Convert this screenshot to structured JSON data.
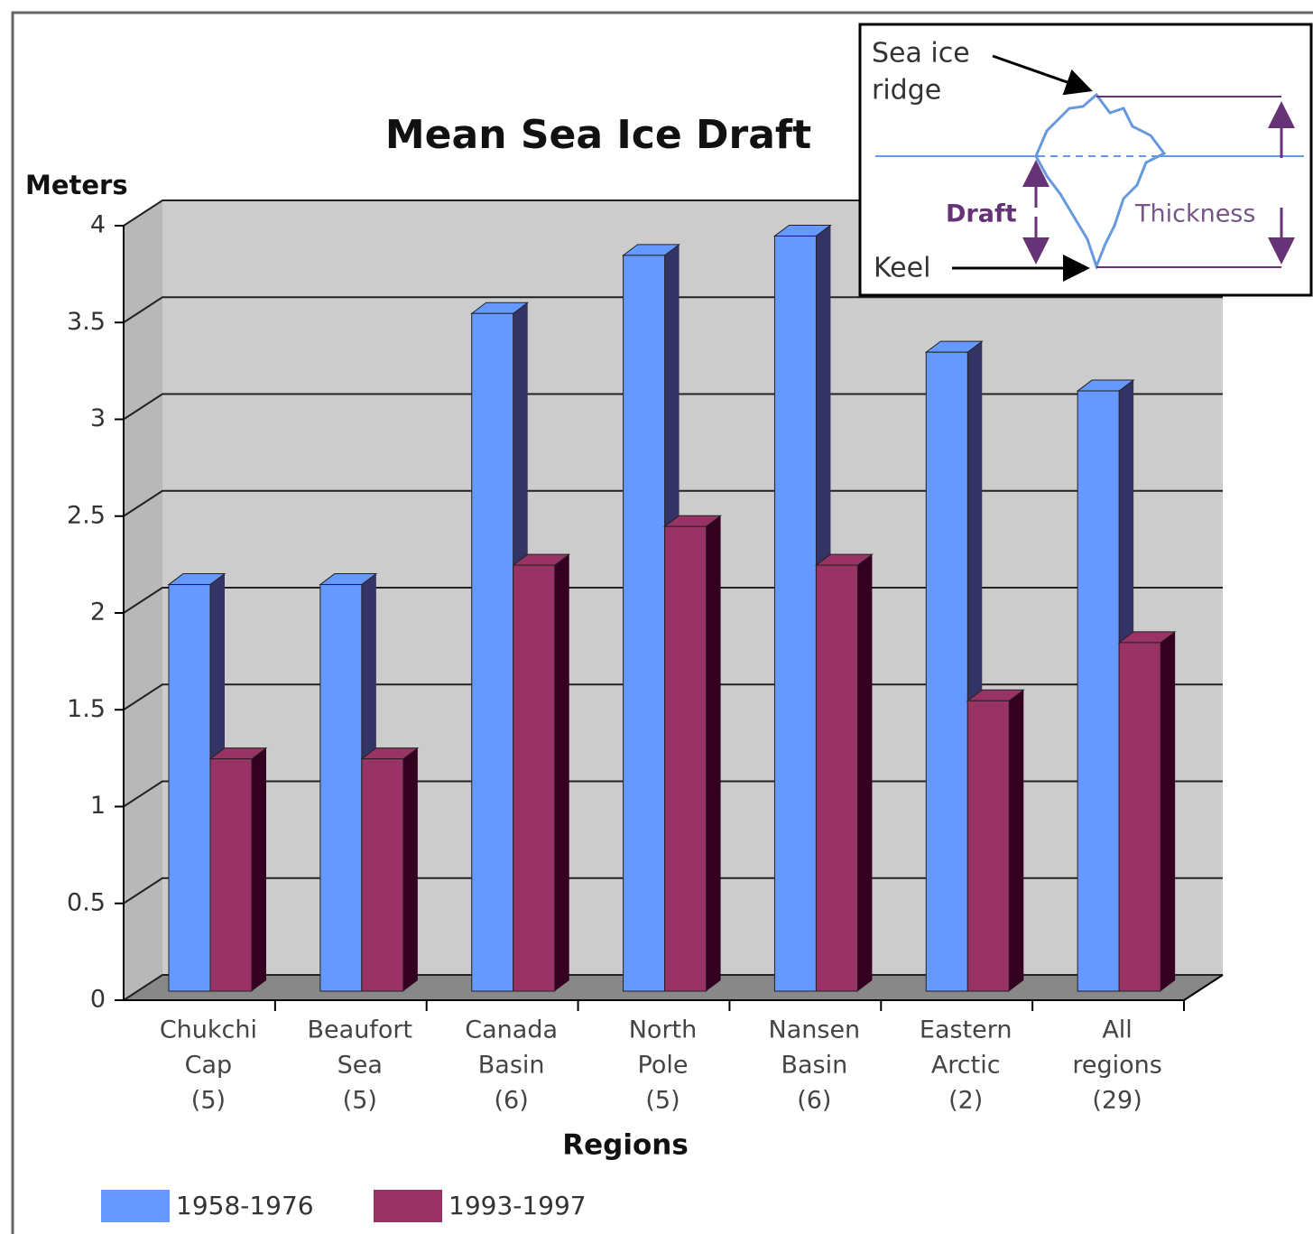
{
  "chart_data": {
    "type": "bar3d",
    "title": "Mean Sea Ice Draft",
    "y_label": "Meters",
    "x_label": "Regions",
    "categories": [
      [
        "Chukchi",
        "Cap",
        "(5)"
      ],
      [
        "Beaufort",
        "Sea",
        "(5)"
      ],
      [
        "Canada",
        "Basin",
        "(6)"
      ],
      [
        "North",
        "Pole",
        "(5)"
      ],
      [
        "Nansen",
        "Basin",
        "(6)"
      ],
      [
        "Eastern",
        "Arctic",
        "(2)"
      ],
      [
        "All",
        "regions",
        "(29)"
      ]
    ],
    "series": [
      {
        "name": "1958-1976",
        "color": "#6699ff",
        "side_color": "#333366",
        "values": [
          2.1,
          2.1,
          3.5,
          3.8,
          3.9,
          3.3,
          3.1
        ]
      },
      {
        "name": "1993-1997",
        "color": "#993366",
        "side_color": "#330022",
        "values": [
          1.2,
          1.2,
          2.2,
          2.4,
          2.2,
          1.5,
          1.8
        ]
      }
    ],
    "ylim": [
      0,
      4
    ],
    "yticks": [
      0,
      0.5,
      1,
      1.5,
      2,
      2.5,
      3,
      3.5,
      4
    ],
    "grid": true,
    "legend": "bottom-left"
  },
  "inset": {
    "ridge_label": [
      "Sea ice",
      "ridge"
    ],
    "draft_label": "Draft",
    "thickness_label": "Thickness",
    "keel_label": "Keel"
  }
}
